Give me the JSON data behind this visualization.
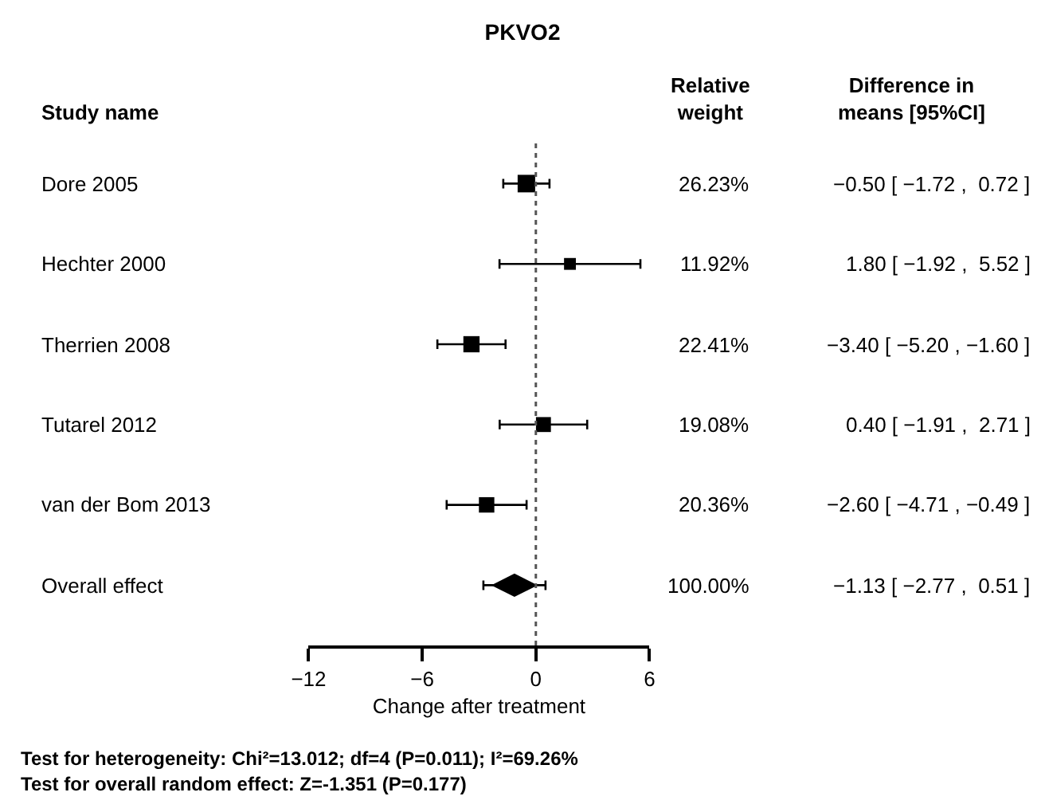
{
  "chart_data": {
    "type": "bubble",
    "orientation": "horizontal",
    "title": "PKVO2",
    "xlabel": "Change after treatment",
    "categories": [
      "Dore 2005",
      "Hechter 2000",
      "Therrien 2008",
      "Tutarel 2012",
      "van der Bom 2013",
      "Overall effect"
    ],
    "series": [
      {
        "marker": "square",
        "color": "#000000",
        "values": [
          -0.5,
          1.8,
          -3.4,
          0.4,
          -2.6,
          null
        ],
        "sizes": [
          1,
          0.454,
          0.854,
          0.727,
          0.776,
          null
        ],
        "errors": [
          [
            -1.72,
            0.72
          ],
          [
            -1.92,
            5.52
          ],
          [
            -5.2,
            -1.6
          ],
          [
            -1.91,
            2.71
          ],
          [
            -4.71,
            -0.49
          ],
          null
        ]
      },
      {
        "type": "scatter",
        "marker": "diamond",
        "color": "#000000",
        "values": [
          null,
          null,
          null,
          null,
          null,
          -1.13
        ],
        "errors": [
          null,
          null,
          null,
          null,
          null,
          [
            -2.77,
            0.51
          ]
        ]
      }
    ],
    "value_labels": [
      "−0.50 [ −1.72 ,  0.72 ]",
      "1.80 [ −1.92 ,  5.52 ]",
      "−3.40 [ −5.20 , −1.60 ]",
      "0.40 [ −1.91 ,  2.71 ]",
      "−2.60 [ −4.71 , −0.49 ]",
      "−1.13 [ −2.77 ,  0.51 ]"
    ],
    "xlim": [
      -12,
      6
    ],
    "xticks": [
      {
        "value": -12,
        "label": "−12"
      },
      {
        "value": -6,
        "label": "−6"
      },
      0,
      6
    ],
    "ref_lines": [
      {
        "axis": "x",
        "value": 0,
        "line_style": "dotted",
        "color": "#555555"
      }
    ],
    "annotations": [
      "Study name",
      "Relative\nweight",
      "Difference in\nmeans [95%CI]",
      "26.23%",
      "11.92%",
      "22.41%",
      "19.08%",
      "20.36%",
      "100.00%",
      "Test for heterogeneity: Chi²=13.012; df=4 (P=0.011); I²=69.26%",
      "Test for overall random effect: Z=-1.351 (P=0.177)"
    ]
  }
}
